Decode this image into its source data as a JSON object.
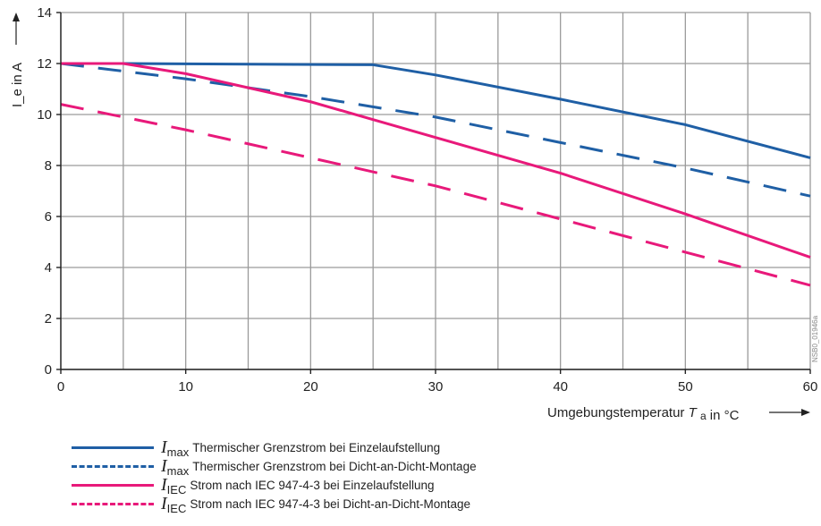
{
  "chart_data": {
    "type": "line",
    "y_axis_label": "I_e in A",
    "x_axis_label_prefix": "Umgebungstemperatur",
    "x_axis_label_symbol": "T",
    "x_axis_label_sub": "a",
    "x_axis_label_suffix": "in °C",
    "xlim": [
      0,
      60
    ],
    "ylim": [
      0,
      14
    ],
    "x_ticks": [
      "0",
      "10",
      "20",
      "30",
      "40",
      "50",
      "60"
    ],
    "y_ticks": [
      "0",
      "2",
      "4",
      "6",
      "8",
      "10",
      "12",
      "14"
    ],
    "grid": true,
    "watermark": "NSB0_01946a",
    "series": [
      {
        "name": "Thermischer Grenzstrom bei Einzelaufstellung",
        "symbol": "I",
        "sub": "max",
        "color": "#1f5fa5",
        "dash": "solid",
        "x": [
          0,
          5,
          25,
          30,
          40,
          50,
          60
        ],
        "y": [
          12,
          12,
          11.95,
          11.55,
          10.6,
          9.6,
          8.3
        ]
      },
      {
        "name": "Thermischer Grenzstrom bei Dicht-an-Dicht-Montage",
        "symbol": "I",
        "sub": "max",
        "color": "#1f5fa5",
        "dash": "dashed",
        "x": [
          0,
          10,
          20,
          30,
          40,
          50,
          60
        ],
        "y": [
          12,
          11.4,
          10.7,
          9.9,
          8.9,
          7.9,
          6.8
        ]
      },
      {
        "name": "Strom nach IEC 947-4-3 bei Einzelaufstellung",
        "symbol": "I",
        "sub": "IEC",
        "color": "#e8197a",
        "dash": "solid",
        "x": [
          0,
          5,
          10,
          20,
          30,
          40,
          50,
          60
        ],
        "y": [
          12,
          12,
          11.6,
          10.5,
          9.1,
          7.7,
          6.1,
          4.4
        ]
      },
      {
        "name": "Strom nach IEC 947-4-3 bei Dicht-an-Dicht-Montage",
        "symbol": "I",
        "sub": "IEC",
        "color": "#e8197a",
        "dash": "dashed",
        "x": [
          0,
          10,
          20,
          30,
          40,
          50,
          60
        ],
        "y": [
          10.4,
          9.4,
          8.3,
          7.2,
          5.9,
          4.6,
          3.3
        ]
      }
    ]
  }
}
